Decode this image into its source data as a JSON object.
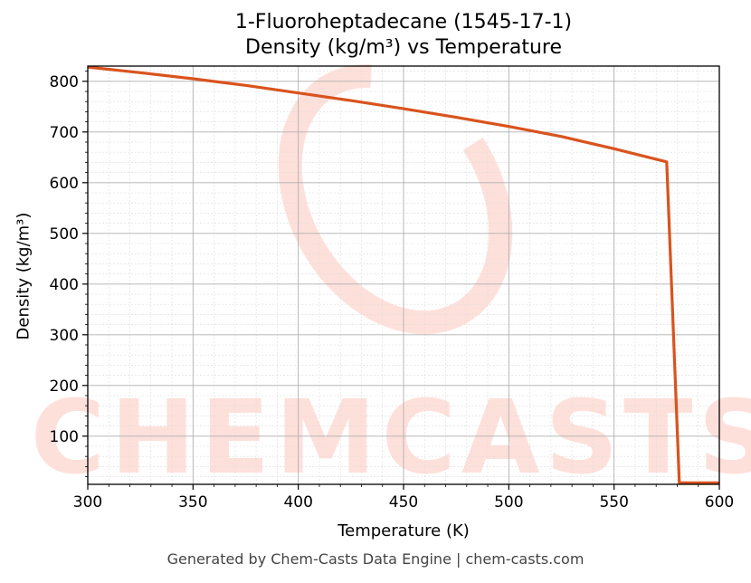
{
  "chart_data": {
    "type": "line",
    "title": "1-Fluoroheptadecane (1545-17-1)",
    "subtitle": "Density (kg/m³) vs Temperature",
    "xlabel": "Temperature (K)",
    "ylabel": "Density (kg/m³)",
    "xlim": [
      300,
      600
    ],
    "ylim": [
      5,
      830
    ],
    "x_ticks": [
      300,
      350,
      400,
      450,
      500,
      550,
      600
    ],
    "y_ticks": [
      100,
      200,
      300,
      400,
      500,
      600,
      700,
      800
    ],
    "grid": true,
    "series": [
      {
        "color": "#d9531e",
        "x": [
          300,
          325,
          350,
          375,
          400,
          425,
          450,
          475,
          500,
          525,
          550,
          575,
          581,
          600
        ],
        "y": [
          828,
          817,
          805,
          792,
          777,
          762,
          746,
          729,
          711,
          691,
          667,
          641,
          8,
          8
        ]
      }
    ]
  },
  "watermark": "CHEMCASTS",
  "footer": "Generated by Chem-Casts Data Engine | chem-casts.com"
}
